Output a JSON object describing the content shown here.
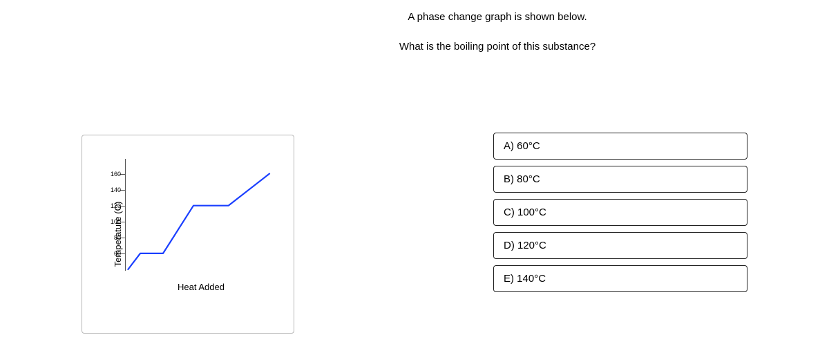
{
  "question": {
    "line1": "A phase change graph is shown below.",
    "line2": "What is the boiling point of this substance?"
  },
  "chart": {
    "type": "line",
    "ylabel": "Temperature (C)",
    "xlabel": "Heat Added",
    "ylim": [
      40,
      170
    ],
    "yticks": [
      60,
      80,
      100,
      120,
      140,
      160
    ],
    "line_color": "#1a3fff",
    "line_width": 2.2,
    "axis_color": "#555555",
    "tick_fontsize": 9,
    "label_fontsize": 13,
    "background_color": "#ffffff",
    "border_color": "#b7b7b7",
    "points_xy": [
      [
        0.02,
        40
      ],
      [
        0.1,
        60
      ],
      [
        0.25,
        60
      ],
      [
        0.45,
        120
      ],
      [
        0.68,
        120
      ],
      [
        0.95,
        160
      ]
    ]
  },
  "options": [
    {
      "label": "A) 60°C"
    },
    {
      "label": "B) 80°C"
    },
    {
      "label": "C) 100°C"
    },
    {
      "label": "D) 120°C"
    },
    {
      "label": "E) 140°C"
    }
  ]
}
